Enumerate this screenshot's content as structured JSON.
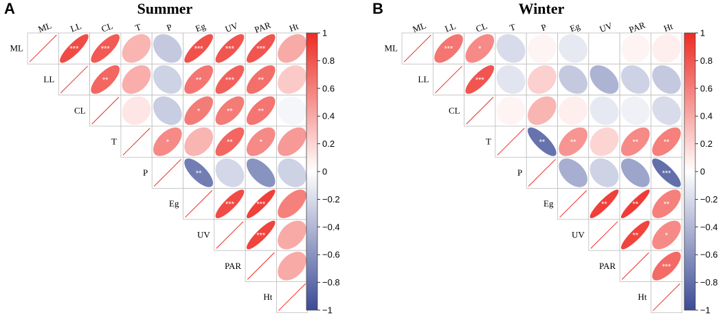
{
  "chart_data": [
    {
      "type": "heatmap",
      "subtype": "correlation-ellipse-upper-triangle",
      "panel_letter": "A",
      "title": "Summer",
      "variables": [
        "ML",
        "LL",
        "CL",
        "T",
        "P",
        "Eg",
        "UV",
        "PAR",
        "Ht"
      ],
      "matrix": [
        [
          1.0,
          0.85,
          0.78,
          0.35,
          -0.3,
          0.82,
          0.8,
          0.8,
          0.4
        ],
        [
          0.85,
          1.0,
          0.72,
          0.38,
          -0.25,
          0.65,
          0.75,
          0.68,
          0.25
        ],
        [
          0.78,
          0.72,
          1.0,
          0.12,
          -0.28,
          0.62,
          0.62,
          0.65,
          -0.05
        ],
        [
          0.35,
          0.38,
          0.12,
          1.0,
          0.55,
          0.35,
          0.72,
          0.55,
          0.48
        ],
        [
          -0.3,
          -0.25,
          -0.28,
          0.55,
          1.0,
          -0.72,
          -0.22,
          -0.6,
          -0.25
        ],
        [
          0.82,
          0.65,
          0.62,
          0.35,
          -0.72,
          1.0,
          0.85,
          0.9,
          0.6
        ],
        [
          0.8,
          0.75,
          0.62,
          0.72,
          -0.22,
          0.85,
          1.0,
          0.88,
          0.4
        ],
        [
          0.8,
          0.68,
          0.65,
          0.55,
          -0.6,
          0.9,
          0.88,
          1.0,
          0.4
        ],
        [
          0.4,
          0.25,
          -0.05,
          0.48,
          -0.25,
          0.6,
          0.4,
          0.4,
          1.0
        ]
      ],
      "significance": [
        [
          "",
          "***",
          "***",
          "",
          "",
          "***",
          "***",
          "***",
          ""
        ],
        [
          "",
          "",
          "**",
          "",
          "",
          "**",
          "***",
          "**",
          ""
        ],
        [
          "",
          "",
          "",
          "",
          "",
          "*",
          "**",
          "**",
          ""
        ],
        [
          "",
          "",
          "",
          "",
          "*",
          "",
          "**",
          "*",
          ""
        ],
        [
          "",
          "",
          "",
          "",
          "",
          "**",
          "",
          "",
          ""
        ],
        [
          "",
          "",
          "",
          "",
          "",
          "",
          "***",
          "***",
          ""
        ],
        [
          "",
          "",
          "",
          "",
          "",
          "",
          "",
          "***",
          ""
        ],
        [
          "",
          "",
          "",
          "",
          "",
          "",
          "",
          "",
          ""
        ],
        [
          "",
          "",
          "",
          "",
          "",
          "",
          "",
          "",
          ""
        ]
      ]
    },
    {
      "type": "heatmap",
      "subtype": "correlation-ellipse-upper-triangle",
      "panel_letter": "B",
      "title": "Winter",
      "variables": [
        "ML",
        "LL",
        "CL",
        "T",
        "P",
        "Eg",
        "UV",
        "PAR",
        "Ht"
      ],
      "matrix": [
        [
          1.0,
          0.65,
          0.55,
          -0.2,
          0.05,
          -0.12,
          0.0,
          0.05,
          0.08
        ],
        [
          0.65,
          1.0,
          0.8,
          -0.15,
          0.22,
          -0.3,
          -0.42,
          -0.25,
          -0.3
        ],
        [
          0.55,
          0.8,
          1.0,
          0.05,
          0.35,
          0.08,
          -0.12,
          -0.08,
          -0.2
        ],
        [
          -0.2,
          -0.15,
          0.05,
          1.0,
          -0.78,
          0.5,
          0.2,
          0.55,
          0.6
        ],
        [
          0.05,
          0.22,
          0.35,
          -0.78,
          1.0,
          -0.45,
          -0.25,
          -0.5,
          -0.8
        ],
        [
          -0.12,
          -0.3,
          0.08,
          0.5,
          -0.45,
          1.0,
          0.9,
          0.92,
          0.6
        ],
        [
          0.0,
          -0.42,
          -0.12,
          0.2,
          -0.25,
          0.9,
          1.0,
          0.88,
          0.55
        ],
        [
          0.05,
          -0.25,
          -0.08,
          0.55,
          -0.5,
          0.92,
          0.88,
          1.0,
          0.7
        ],
        [
          0.08,
          -0.3,
          -0.2,
          0.6,
          -0.8,
          0.6,
          0.55,
          0.7,
          1.0
        ]
      ],
      "significance": [
        [
          "",
          "***",
          "*",
          "",
          "",
          "",
          "",
          "",
          ""
        ],
        [
          "",
          "",
          "***",
          "",
          "",
          "",
          "",
          "",
          ""
        ],
        [
          "",
          "",
          "",
          "",
          "",
          "",
          "",
          "",
          ""
        ],
        [
          "",
          "",
          "",
          "",
          "**",
          "**",
          "",
          "**",
          "**"
        ],
        [
          "",
          "",
          "",
          "",
          "",
          "",
          "",
          "",
          "***"
        ],
        [
          "",
          "",
          "",
          "",
          "",
          "",
          "**",
          "**",
          "**"
        ],
        [
          "",
          "",
          "",
          "",
          "",
          "",
          "",
          "**",
          "*"
        ],
        [
          "",
          "",
          "",
          "",
          "",
          "",
          "",
          "",
          "***"
        ],
        [
          "",
          "",
          "",
          "",
          "",
          "",
          "",
          "",
          ""
        ]
      ]
    }
  ],
  "colorbar": {
    "range": [
      -1,
      1
    ],
    "ticks": [
      1,
      0.8,
      0.6,
      0.4,
      0.2,
      0,
      -0.2,
      -0.4,
      -0.6,
      -0.8,
      -1
    ],
    "tick_labels": [
      "1",
      "0.8",
      "0.6",
      "0.4",
      "0.2",
      "0",
      "−0.2",
      "−0.4",
      "−0.6",
      "−0.8",
      "−1"
    ],
    "colors": {
      "negative": "#3b4b96",
      "neutral": "#ffffff",
      "positive": "#ee2b24"
    }
  },
  "style": {
    "grid_color": "#bbbbbb",
    "diagonal_line_color": "#ee2b24",
    "sig_text_color": "#ffffff"
  }
}
